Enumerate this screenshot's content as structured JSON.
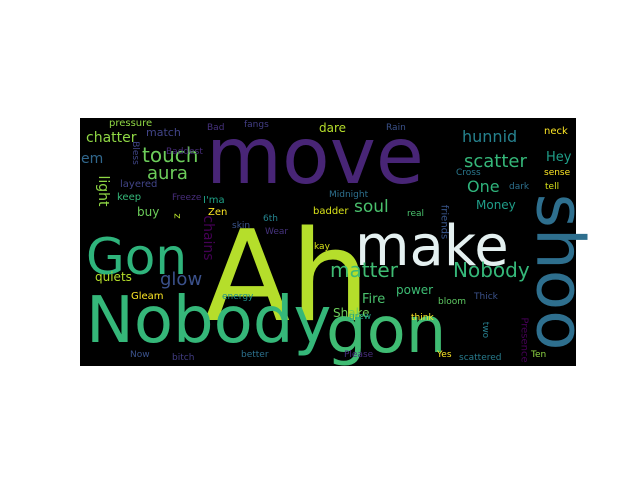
{
  "wordcloud": {
    "background_color": "#000000",
    "words": [
      {
        "text": "Ah",
        "color": "#b5de2b"
      },
      {
        "text": "move",
        "color": "#482576"
      },
      {
        "text": "Nobody",
        "color": "#35b779"
      },
      {
        "text": "gon",
        "color": "#3fbc73"
      },
      {
        "text": "make",
        "color": "#e4f0f0"
      },
      {
        "text": "Gon",
        "color": "#2fb47c"
      },
      {
        "text": "shoo",
        "color": "#2e6f8e"
      },
      {
        "text": "matter",
        "color": "#3fbc73"
      },
      {
        "text": "Nobody",
        "color": "#35b779"
      },
      {
        "text": "touch",
        "color": "#6ccd5a"
      },
      {
        "text": "glow",
        "color": "#3b518b"
      },
      {
        "text": "aura",
        "color": "#6ccd5a"
      },
      {
        "text": "scatter",
        "color": "#35b779"
      },
      {
        "text": "soul",
        "color": "#4ac16d"
      },
      {
        "text": "One",
        "color": "#2fb47c"
      },
      {
        "text": "hunnid",
        "color": "#26828e"
      },
      {
        "text": "chatter",
        "color": "#8fd744"
      },
      {
        "text": "em",
        "color": "#31688e"
      },
      {
        "text": "Hey",
        "color": "#1f9e89"
      },
      {
        "text": "Fire",
        "color": "#4ac16d"
      },
      {
        "text": "power",
        "color": "#3dbc74"
      },
      {
        "text": "Shake",
        "color": "#6ccd5a"
      },
      {
        "text": "chains",
        "color": "#440154"
      },
      {
        "text": "light",
        "color": "#8fd744"
      },
      {
        "text": "Money",
        "color": "#1f9e89"
      },
      {
        "text": "quiets",
        "color": "#b5de2b"
      },
      {
        "text": "dare",
        "color": "#b5de2b"
      },
      {
        "text": "match",
        "color": "#414487"
      },
      {
        "text": "buy",
        "color": "#6ccd5a"
      },
      {
        "text": "pressure",
        "color": "#8fd744"
      },
      {
        "text": "Bad",
        "color": "#46327e"
      },
      {
        "text": "fangs",
        "color": "#433e85"
      },
      {
        "text": "Rain",
        "color": "#3b528b"
      },
      {
        "text": "neck",
        "color": "#fde725"
      },
      {
        "text": "Bless",
        "color": "#404688"
      },
      {
        "text": "Baddest",
        "color": "#472c7a"
      },
      {
        "text": "Cross",
        "color": "#2a788e"
      },
      {
        "text": "sense",
        "color": "#fde725"
      },
      {
        "text": "dark",
        "color": "#2d708e"
      },
      {
        "text": "tell",
        "color": "#d8e219"
      },
      {
        "text": "layered",
        "color": "#414487"
      },
      {
        "text": "keep",
        "color": "#35b779"
      },
      {
        "text": "Freeze",
        "color": "#472d7b"
      },
      {
        "text": "I'ma",
        "color": "#1fa187"
      },
      {
        "text": "Zen",
        "color": "#fde725"
      },
      {
        "text": "z",
        "color": "#b5de2b"
      },
      {
        "text": "skin",
        "color": "#3a548c"
      },
      {
        "text": "6th",
        "color": "#25848e"
      },
      {
        "text": "Wear",
        "color": "#46337e"
      },
      {
        "text": "Midnight",
        "color": "#2d708e"
      },
      {
        "text": "badder",
        "color": "#d8e219"
      },
      {
        "text": "real",
        "color": "#4ac16d"
      },
      {
        "text": "friends",
        "color": "#39568c"
      },
      {
        "text": "kay",
        "color": "#d8e219"
      },
      {
        "text": "Gleam",
        "color": "#fde725"
      },
      {
        "text": "energy",
        "color": "#21918c"
      },
      {
        "text": "grew",
        "color": "#20a386"
      },
      {
        "text": "bloom",
        "color": "#5ec962"
      },
      {
        "text": "Thick",
        "color": "#3b528b"
      },
      {
        "text": "think",
        "color": "#fde725"
      },
      {
        "text": "Presence",
        "color": "#440154"
      },
      {
        "text": "two",
        "color": "#277f8e"
      },
      {
        "text": "Now",
        "color": "#3b528b"
      },
      {
        "text": "bitch",
        "color": "#433e85"
      },
      {
        "text": "better",
        "color": "#2c718e"
      },
      {
        "text": "Please",
        "color": "#472d7b"
      },
      {
        "text": "Yes",
        "color": "#fde725"
      },
      {
        "text": "scattered",
        "color": "#287c8e"
      },
      {
        "text": "Ten",
        "color": "#8fd744"
      }
    ]
  }
}
